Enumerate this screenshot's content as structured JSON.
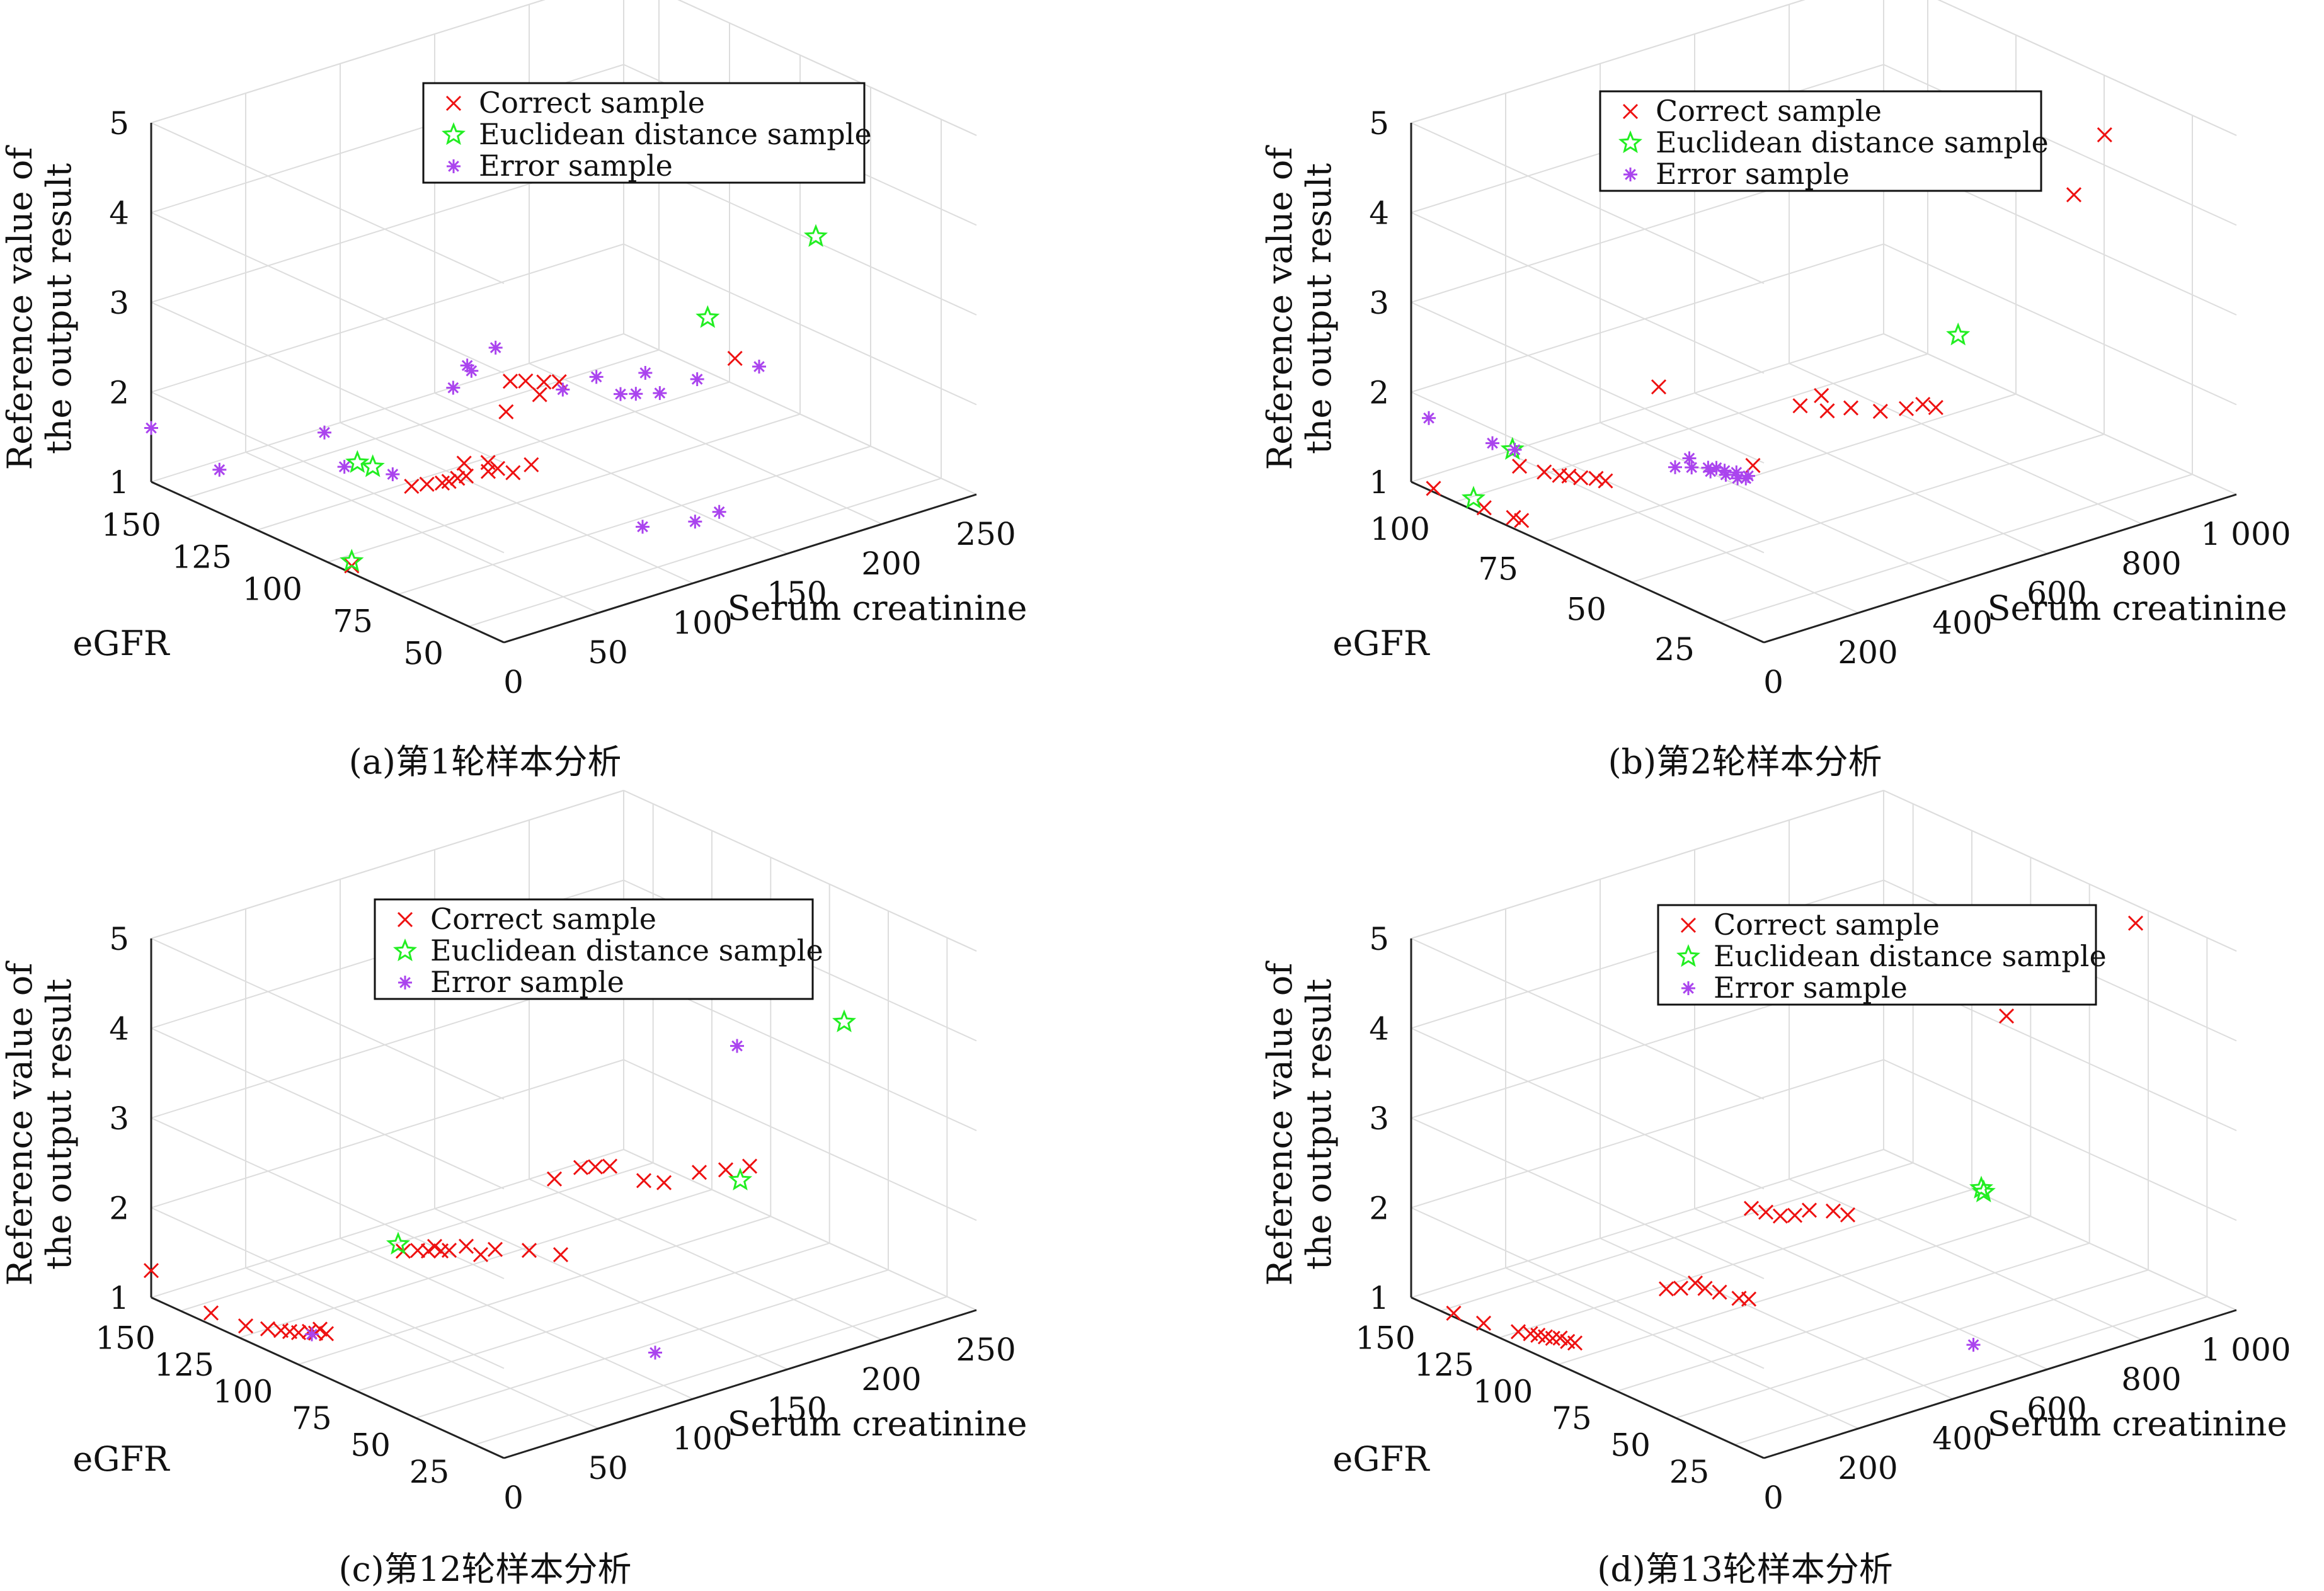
{
  "chart_data": [
    {
      "type": "scatter",
      "caption": "(a)第1轮样本分析",
      "xlabel": "Serum creatinine",
      "ylabel": "eGFR",
      "zlabel": "Reference value of the output result",
      "zlabel_lines": [
        "Reference value of",
        "the output result"
      ],
      "xlim": [
        0,
        250
      ],
      "ylim": [
        30,
        150
      ],
      "zlim": [
        1,
        5
      ],
      "xticks": [
        "0",
        "50",
        "100",
        "150",
        "200",
        "250"
      ],
      "yticks": [
        "150",
        "125",
        "100",
        "75",
        "50"
      ],
      "zticks": [
        "1",
        "2",
        "3",
        "4",
        "5"
      ],
      "legend": [
        "Correct sample",
        "Euclidean distance sample",
        "Error sample"
      ],
      "legend_position": "top",
      "grid": true,
      "series": [
        {
          "name": "Correct sample",
          "marker": "x",
          "color": "#ee1111",
          "points": [
            [
              5,
              85,
              1.0
            ],
            [
              60,
              100,
              1.3
            ],
            [
              65,
              98,
              1.32
            ],
            [
              70,
              96,
              1.33
            ],
            [
              72,
              95,
              1.35
            ],
            [
              75,
              94,
              1.38
            ],
            [
              78,
              93,
              1.4
            ],
            [
              85,
              90,
              1.45
            ],
            [
              80,
              95,
              1.5
            ],
            [
              90,
              90,
              1.45
            ],
            [
              95,
              88,
              1.4
            ],
            [
              88,
              92,
              1.5
            ],
            [
              100,
              85,
              1.5
            ],
            [
              110,
              100,
              1.8
            ],
            [
              120,
              95,
              2.0
            ],
            [
              120,
              105,
              2.0
            ],
            [
              125,
              103,
              2.0
            ],
            [
              130,
              100,
              2.0
            ],
            [
              135,
              98,
              2.0
            ],
            [
              200,
              80,
              2.1
            ]
          ]
        },
        {
          "name": "Euclidean distance sample",
          "marker": "star",
          "color": "#22ee22",
          "points": [
            [
              5,
              85,
              1.05
            ],
            [
              50,
              112,
              1.45
            ],
            [
              55,
              110,
              1.4
            ],
            [
              170,
              70,
              2.9
            ],
            [
              235,
              75,
              3.3
            ]
          ]
        },
        {
          "name": "Error sample",
          "marker": "asterisk",
          "color": "#aa44ee",
          "points": [
            [
              0,
              150,
              1.6
            ],
            [
              5,
              130,
              1.4
            ],
            [
              40,
              110,
              1.5
            ],
            [
              50,
              100,
              1.5
            ],
            [
              45,
              120,
              1.7
            ],
            [
              110,
              118,
              1.8
            ],
            [
              115,
              115,
              2.0
            ],
            [
              105,
              110,
              2.2
            ],
            [
              120,
              110,
              2.3
            ],
            [
              140,
              100,
              1.85
            ],
            [
              150,
              95,
              2.0
            ],
            [
              165,
              88,
              2.05
            ],
            [
              155,
              90,
              1.85
            ],
            [
              160,
              88,
              1.85
            ],
            [
              168,
              85,
              1.85
            ],
            [
              180,
              80,
              2.0
            ],
            [
              205,
              75,
              2.05
            ],
            [
              120,
              60,
              1.05
            ],
            [
              140,
              55,
              1.05
            ],
            [
              145,
              50,
              1.2
            ]
          ]
        }
      ]
    },
    {
      "type": "scatter",
      "caption": "(b)第2轮样本分析",
      "xlabel": "Serum creatinine",
      "ylabel": "eGFR",
      "zlabel": "Reference value of the output result",
      "zlabel_lines": [
        "Reference value of",
        "the output result"
      ],
      "xlim": [
        0,
        1000
      ],
      "ylim": [
        10,
        110
      ],
      "zlim": [
        1,
        5
      ],
      "xticks": [
        "0",
        "200",
        "400",
        "600",
        "800",
        "1 000"
      ],
      "yticks": [
        "100",
        "75",
        "50",
        "25"
      ],
      "zticks": [
        "1",
        "2",
        "3",
        "4",
        "5"
      ],
      "legend": [
        "Correct sample",
        "Euclidean distance sample",
        "Error sample"
      ],
      "legend_position": "top-left",
      "grid": true,
      "series": [
        {
          "name": "Correct sample",
          "marker": "x",
          "color": "#ee1111",
          "points": [
            [
              10,
              105,
              1.0
            ],
            [
              20,
              92,
              1.0
            ],
            [
              30,
              85,
              1.0
            ],
            [
              32,
              83,
              1.0
            ],
            [
              80,
              90,
              1.4
            ],
            [
              95,
              85,
              1.4
            ],
            [
              105,
              82,
              1.4
            ],
            [
              110,
              80,
              1.42
            ],
            [
              120,
              78,
              1.42
            ],
            [
              130,
              75,
              1.45
            ],
            [
              135,
              73,
              1.45
            ],
            [
              350,
              60,
              1.5
            ],
            [
              300,
              80,
              2.1
            ],
            [
              450,
              60,
              2.0
            ],
            [
              470,
              55,
              2.0
            ],
            [
              480,
              58,
              2.1
            ],
            [
              520,
              55,
              1.95
            ],
            [
              560,
              52,
              1.9
            ],
            [
              600,
              50,
              1.9
            ],
            [
              620,
              48,
              1.95
            ],
            [
              640,
              47,
              1.9
            ],
            [
              880,
              40,
              4.0
            ],
            [
              960,
              42,
              4.5
            ]
          ]
        },
        {
          "name": "Euclidean distance sample",
          "marker": "star",
          "color": "#22ee22",
          "points": [
            [
              20,
              95,
              1.05
            ],
            [
              80,
              92,
              1.55
            ],
            [
              620,
              38,
              2.9
            ]
          ]
        },
        {
          "name": "Error sample",
          "marker": "asterisk",
          "color": "#aa44ee",
          "points": [
            [
              0,
              105,
              1.8
            ],
            [
              60,
              95,
              1.6
            ],
            [
              70,
              90,
              1.6
            ],
            [
              260,
              70,
              1.45
            ],
            [
              280,
              68,
              1.45
            ],
            [
              300,
              66,
              1.45
            ],
            [
              310,
              65,
              1.45
            ],
            [
              320,
              64,
              1.42
            ],
            [
              330,
              62,
              1.42
            ],
            [
              340,
              60,
              1.4
            ],
            [
              290,
              70,
              1.5
            ],
            [
              305,
              66,
              1.4
            ],
            [
              315,
              63,
              1.4
            ],
            [
              325,
              61,
              1.38
            ],
            [
              335,
              60,
              1.38
            ]
          ]
        }
      ]
    },
    {
      "type": "scatter",
      "caption": "(c)第12轮样本分析",
      "xlabel": "Serum creatinine",
      "ylabel": "eGFR",
      "zlabel": "Reference value of the output result",
      "zlabel_lines": [
        "Reference value of",
        "the output result"
      ],
      "xlim": [
        0,
        250
      ],
      "ylim": [
        10,
        150
      ],
      "zlim": [
        1,
        5
      ],
      "xticks": [
        "0",
        "50",
        "100",
        "150",
        "200",
        "250"
      ],
      "yticks": [
        "150",
        "125",
        "100",
        "75",
        "50",
        "25"
      ],
      "zticks": [
        "1",
        "2",
        "3",
        "4",
        "5"
      ],
      "legend": [
        "Correct sample",
        "Euclidean distance sample",
        "Error sample"
      ],
      "legend_position": "top",
      "grid": true,
      "series": [
        {
          "name": "Correct sample",
          "marker": "x",
          "color": "#ee1111",
          "points": [
            [
              0,
              150,
              1.3
            ],
            [
              5,
              130,
              1.05
            ],
            [
              10,
              120,
              1.0
            ],
            [
              15,
              115,
              1.0
            ],
            [
              18,
              112,
              1.0
            ],
            [
              20,
              110,
              1.0
            ],
            [
              22,
              108,
              1.0
            ],
            [
              25,
              106,
              1.02
            ],
            [
              27,
              105,
              1.0
            ],
            [
              28,
              104,
              1.05
            ],
            [
              30,
              103,
              1.0
            ],
            [
              80,
              110,
              1.5
            ],
            [
              85,
              108,
              1.5
            ],
            [
              88,
              106,
              1.5
            ],
            [
              90,
              105,
              1.55
            ],
            [
              92,
              104,
              1.5
            ],
            [
              95,
              103,
              1.5
            ],
            [
              100,
              100,
              1.55
            ],
            [
              105,
              98,
              1.45
            ],
            [
              110,
              96,
              1.5
            ],
            [
              120,
              90,
              1.5
            ],
            [
              130,
              85,
              1.45
            ],
            [
              140,
              95,
              2.1
            ],
            [
              150,
              92,
              2.2
            ],
            [
              155,
              90,
              2.2
            ],
            [
              160,
              88,
              2.2
            ],
            [
              170,
              82,
              2.05
            ],
            [
              178,
              80,
              2.0
            ],
            [
              190,
              75,
              2.1
            ],
            [
              200,
              72,
              2.1
            ],
            [
              210,
              70,
              2.1
            ]
          ]
        },
        {
          "name": "Euclidean distance sample",
          "marker": "star",
          "color": "#22ee22",
          "points": [
            [
              80,
              112,
              1.55
            ],
            [
              185,
              55,
              2.3
            ],
            [
              240,
              55,
              3.7
            ]
          ]
        },
        {
          "name": "Error sample",
          "marker": "asterisk",
          "color": "#aa44ee",
          "points": [
            [
              25,
              105,
              1.0
            ],
            [
              190,
              60,
              3.7
            ],
            [
              120,
              40,
              1.0
            ]
          ]
        }
      ]
    },
    {
      "type": "scatter",
      "caption": "(d)第13轮样本分析",
      "xlabel": "Serum creatinine",
      "ylabel": "eGFR",
      "zlabel": "Reference value of the output result",
      "zlabel_lines": [
        "Reference value of",
        "the output result"
      ],
      "xlim": [
        0,
        1000
      ],
      "ylim": [
        10,
        150
      ],
      "zlim": [
        1,
        5
      ],
      "xticks": [
        "0",
        "200",
        "400",
        "600",
        "800",
        "1 000"
      ],
      "yticks": [
        "150",
        "125",
        "100",
        "75",
        "50",
        "25"
      ],
      "zticks": [
        "1",
        "2",
        "3",
        "4",
        "5"
      ],
      "legend": [
        "Correct sample",
        "Euclidean distance sample",
        "Error sample"
      ],
      "legend_position": "top-right",
      "grid": true,
      "series": [
        {
          "name": "Correct sample",
          "marker": "x",
          "color": "#ee1111",
          "points": [
            [
              10,
              135,
              1.0
            ],
            [
              20,
              125,
              1.0
            ],
            [
              40,
              115,
              1.0
            ],
            [
              50,
              112,
              1.0
            ],
            [
              55,
              110,
              1.0
            ],
            [
              60,
              108,
              1.0
            ],
            [
              65,
              106,
              1.0
            ],
            [
              70,
              104,
              1.02
            ],
            [
              75,
              102,
              1.0
            ],
            [
              80,
              100,
              1.0
            ],
            [
              220,
              90,
              1.5
            ],
            [
              240,
              88,
              1.5
            ],
            [
              260,
              86,
              1.55
            ],
            [
              270,
              84,
              1.5
            ],
            [
              290,
              82,
              1.45
            ],
            [
              310,
              78,
              1.4
            ],
            [
              320,
              76,
              1.4
            ],
            [
              400,
              90,
              2.1
            ],
            [
              420,
              88,
              2.05
            ],
            [
              440,
              86,
              2.0
            ],
            [
              460,
              84,
              2.0
            ],
            [
              480,
              82,
              2.05
            ],
            [
              520,
              80,
              2.0
            ],
            [
              540,
              78,
              1.95
            ],
            [
              780,
              60,
              4.0
            ],
            [
              820,
              58,
              4.2
            ],
            [
              1000,
              50,
              4.8
            ]
          ]
        },
        {
          "name": "Euclidean distance sample",
          "marker": "star",
          "color": "#22ee22",
          "points": [
            [
              620,
              40,
              2.6
            ],
            [
              625,
              40,
              2.55
            ]
          ]
        },
        {
          "name": "Error sample",
          "marker": "asterisk",
          "color": "#aa44ee",
          "points": [
            [
              550,
              30,
              1.1
            ]
          ]
        }
      ]
    }
  ]
}
